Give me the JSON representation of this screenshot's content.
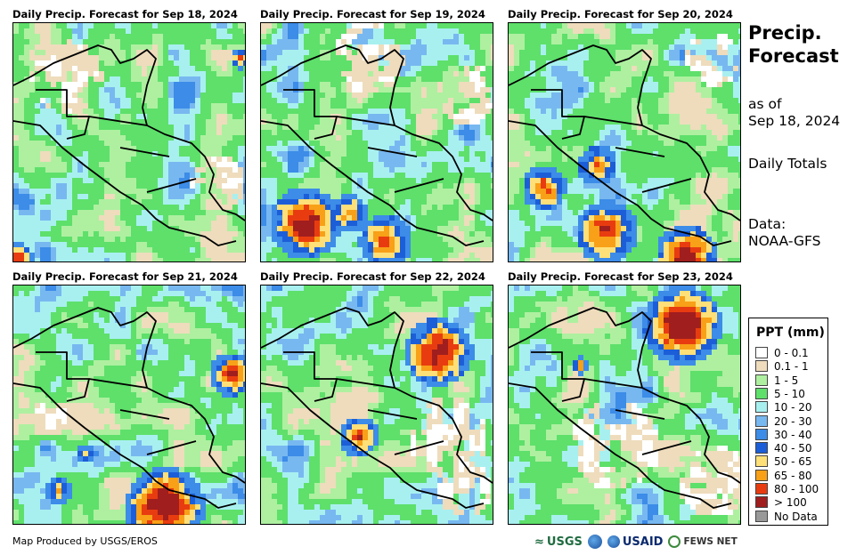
{
  "panels": [
    {
      "title": "Daily Precip. Forecast for Sep 18, 2024",
      "day": 0
    },
    {
      "title": "Daily Precip. Forecast for Sep 19, 2024",
      "day": 1
    },
    {
      "title": "Daily Precip. Forecast for Sep 20, 2024",
      "day": 2
    },
    {
      "title": "Daily Precip. Forecast for Sep 21, 2024",
      "day": 3
    },
    {
      "title": "Daily Precip. Forecast for Sep 22, 2024",
      "day": 4
    },
    {
      "title": "Daily Precip. Forecast for Sep 23, 2024",
      "day": 5
    }
  ],
  "side": {
    "title_line1": "Precip.",
    "title_line2": "Forecast",
    "asof_line1": "as of",
    "asof_line2": "Sep 18, 2024",
    "totals": "Daily Totals",
    "data_line1": "Data:",
    "data_line2": "NOAA-GFS"
  },
  "legend": {
    "title": "PPT (mm)",
    "items": [
      {
        "label": "0 - 0.1",
        "color": "#ffffff"
      },
      {
        "label": "0.1 - 1",
        "color": "#eedcbc"
      },
      {
        "label": "1 - 5",
        "color": "#aef0a0"
      },
      {
        "label": "5 - 10",
        "color": "#5ee06b"
      },
      {
        "label": "10 - 20",
        "color": "#a8f0f0"
      },
      {
        "label": "20 - 30",
        "color": "#78b8f0"
      },
      {
        "label": "30 - 40",
        "color": "#3c8ce8"
      },
      {
        "label": "40 - 50",
        "color": "#1c5ed8"
      },
      {
        "label": "50 - 65",
        "color": "#ffe078"
      },
      {
        "label": "65 - 80",
        "color": "#f8a018"
      },
      {
        "label": "80 - 100",
        "color": "#e83c10"
      },
      {
        "label": "> 100",
        "color": "#a01e1e"
      },
      {
        "label": "No Data",
        "color": "#999999"
      }
    ]
  },
  "footer": {
    "credit": "Map Produced by USGS/EROS",
    "logos": {
      "usgs": "USGS",
      "usaid": "USAID",
      "fews": "FEWS NET"
    }
  }
}
